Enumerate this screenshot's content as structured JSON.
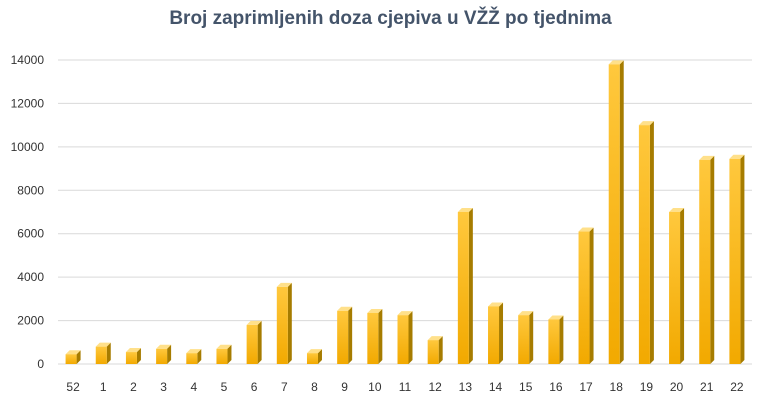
{
  "chart_data": {
    "type": "bar",
    "title": "Broj zaprimljenih doza cjepiva u VŽŽ po tjednima",
    "xlabel": "",
    "ylabel": "",
    "categories": [
      "52",
      "1",
      "2",
      "3",
      "4",
      "5",
      "6",
      "7",
      "8",
      "9",
      "10",
      "11",
      "12",
      "13",
      "14",
      "15",
      "16",
      "17",
      "18",
      "19",
      "20",
      "21",
      "22"
    ],
    "values": [
      450,
      800,
      550,
      700,
      500,
      700,
      1800,
      3550,
      500,
      2450,
      2350,
      2250,
      1100,
      7000,
      2650,
      2250,
      2050,
      6100,
      13800,
      11000,
      7000,
      9400,
      9450
    ],
    "ylim": [
      0,
      14000
    ],
    "yticks": [
      0,
      2000,
      4000,
      6000,
      8000,
      10000,
      12000,
      14000
    ],
    "grid": true,
    "legend": "none",
    "colors": {
      "bar_front_top": "#ffc83d",
      "bar_front_bottom": "#f2a900",
      "bar_side": "#a67c00",
      "bar_top": "#ffe08a",
      "gridline": "#d9d9d9",
      "title": "#44546a"
    }
  }
}
